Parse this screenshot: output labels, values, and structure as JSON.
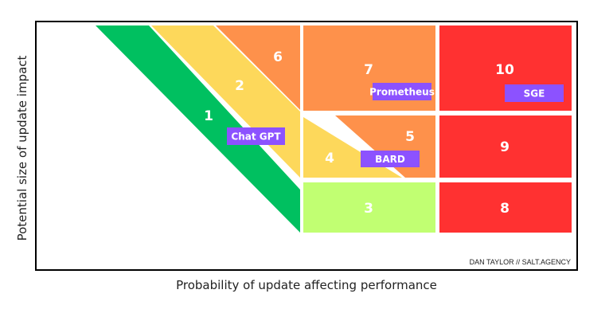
{
  "axes": {
    "xlabel": "Probability of update affecting performance",
    "ylabel": "Potential size of update impact"
  },
  "credit": "DAN TAYLOR // SALT.AGENCY",
  "colors": {
    "green": "#00c060",
    "yellow": "#fdd85b",
    "orange": "#fe914b",
    "red": "#ff3131",
    "lime": "#c1ff72",
    "purple": "#8c52ff",
    "frame": "#000000"
  },
  "zones": [
    {
      "id": "1",
      "label": "1",
      "color": "green"
    },
    {
      "id": "2",
      "label": "2",
      "color": "yellow"
    },
    {
      "id": "3",
      "label": "3",
      "color": "lime"
    },
    {
      "id": "4",
      "label": "4",
      "color": "yellow"
    },
    {
      "id": "5",
      "label": "5",
      "color": "orange"
    },
    {
      "id": "6",
      "label": "6",
      "color": "orange"
    },
    {
      "id": "7",
      "label": "7",
      "color": "orange"
    },
    {
      "id": "8",
      "label": "8",
      "color": "red"
    },
    {
      "id": "9",
      "label": "9",
      "color": "red"
    },
    {
      "id": "10",
      "label": "10",
      "color": "red"
    }
  ],
  "tags": [
    {
      "id": "chatgpt",
      "label": "Chat GPT"
    },
    {
      "id": "prometheus",
      "label": "Prometheus"
    },
    {
      "id": "bard",
      "label": "BARD"
    },
    {
      "id": "sge",
      "label": "SGE"
    }
  ]
}
